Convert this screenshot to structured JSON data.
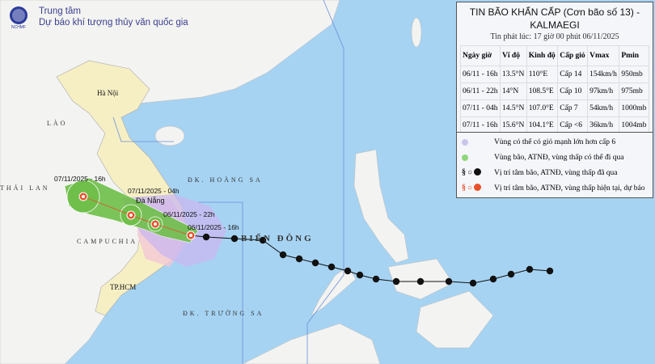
{
  "header": {
    "org_line1": "Trung tâm",
    "org_line2": "Dự báo khí tượng thủy văn quốc gia",
    "logo_text": "NCHMF"
  },
  "bulletin": {
    "title_line1": "TIN BÃO KHẨN CẤP (Cơn bão số 13) -",
    "title_line2": "KALMAEGI",
    "issued": "Tin phát lúc: 17 giờ 00 phút 06/11/2025",
    "columns": [
      "Ngày giờ",
      "Vĩ độ",
      "Kinh độ",
      "Cấp gió",
      "Vmax",
      "Pmin"
    ],
    "rows": [
      [
        "06/11 - 16h",
        "13.5°N",
        "110°E",
        "Cấp 14",
        "154km/h",
        "950mb"
      ],
      [
        "06/11 - 22h",
        "14°N",
        "108.5°E",
        "Cấp 10",
        "97km/h",
        "975mb"
      ],
      [
        "07/11 - 04h",
        "14.5°N",
        "107.0°E",
        "Cấp 7",
        "54km/h",
        "1000mb"
      ],
      [
        "07/11 - 16h",
        "15.6°N",
        "104.1°E",
        "Cấp <6",
        "36km/h",
        "1004mb"
      ]
    ]
  },
  "legend": [
    {
      "icon": "purple-dot",
      "color": "#c9c6ec",
      "label": "Vùng có thể có gió mạnh lớn hơn cấp 6"
    },
    {
      "icon": "green-dot",
      "color": "#8fd67a",
      "label": "Vùng bão, ATNĐ, vùng thấp có thể đi qua"
    },
    {
      "icon": "black-storm-symbols",
      "color": "#111111",
      "label": "Vị trí tâm bão, ATNĐ, vùng thấp đã qua"
    },
    {
      "icon": "red-storm-symbols",
      "color": "#e8502a",
      "label": "Vị trí tâm bão, ATNĐ, vùng thấp hiện tại, dự báo"
    }
  ],
  "map_labels": {
    "hanoi": "Hà Nội",
    "lao": "LÀO",
    "thailand": "THÁI LAN",
    "cambodia": "CAMPUCHIA",
    "danang": "Đà Nẵng",
    "hcm": "TP.HCM",
    "paracel": "ĐK. HOÀNG SA",
    "spratly": "ĐK. TRƯỜNG SA",
    "east_sea": "BIỂN ĐÔNG",
    "t1": "07/11/2025 - 16h",
    "t2": "07/11/2025 - 04h",
    "t3": "06/11/2025 - 22h",
    "t4": "06/11/2025 - 16h"
  },
  "colors": {
    "sea": "#a6d3f2",
    "land": "#f3f3f1",
    "vietnam": "#f6efc4",
    "wind_zone": "#c9b8f0",
    "danger_zone": "#6fbf4a",
    "past_track": "#111111",
    "forecast": "#e8502a"
  }
}
